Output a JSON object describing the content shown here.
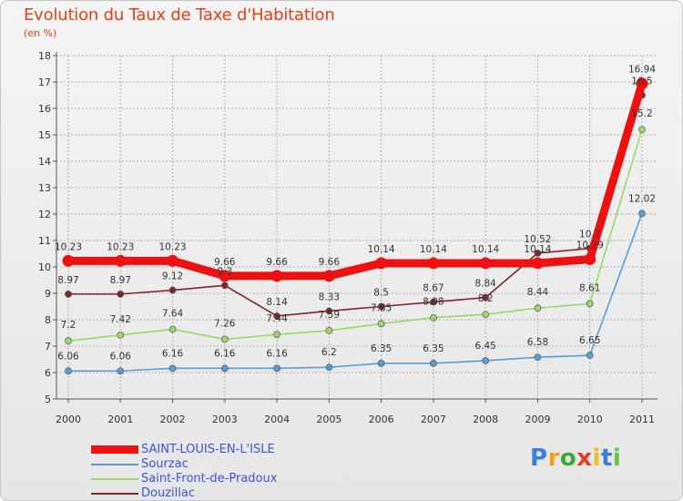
{
  "chart_data": {
    "type": "line",
    "title": "Evolution du Taux de Taxe d'Habitation",
    "subtitle": "(en %)",
    "x": [
      "2000",
      "2001",
      "2002",
      "2003",
      "2004",
      "2005",
      "2006",
      "2007",
      "2008",
      "2009",
      "2010",
      "2011"
    ],
    "yticks": [
      "5",
      "6",
      "7",
      "8",
      "9",
      "10",
      "11",
      "12",
      "13",
      "14",
      "15",
      "16",
      "17",
      "18"
    ],
    "ylim": [
      5,
      18
    ],
    "series": [
      {
        "name": "Sourzac",
        "color": "#5a9ed0",
        "values": [
          6.06,
          6.06,
          6.16,
          6.16,
          6.16,
          6.2,
          6.35,
          6.35,
          6.45,
          6.58,
          6.65,
          12.02
        ],
        "labels": [
          "6.06",
          "6.06",
          "6.16",
          "6.16",
          "6.16",
          "6.2",
          "6.35",
          "6.35",
          "6.45",
          "6.58",
          "6.65",
          "12.02"
        ]
      },
      {
        "name": "Saint-Front-de-Pradoux",
        "color": "#9ad86a",
        "values": [
          7.2,
          7.42,
          7.64,
          7.26,
          7.44,
          7.59,
          7.85,
          8.08,
          8.2,
          8.44,
          8.61,
          15.2
        ],
        "labels": [
          "7.2",
          "7.42",
          "7.64",
          "7.26",
          "7.44",
          "7.59",
          "7.85",
          "8.08",
          "8.2",
          "8.44",
          "8.61",
          "15.2"
        ]
      },
      {
        "name": "Douzillac",
        "color": "#7a2a2a",
        "values": [
          8.97,
          8.97,
          9.12,
          9.3,
          8.14,
          8.33,
          8.5,
          8.67,
          8.84,
          10.52,
          10.7,
          16.5
        ],
        "labels": [
          "8.97",
          "8.97",
          "9.12",
          "9.3",
          "8.14",
          "8.33",
          "8.5",
          "8.67",
          "8.84",
          "10.52",
          "10.7",
          "16.5"
        ]
      },
      {
        "name": "SAINT-LOUIS-EN-L'ISLE",
        "color": "#ee1111",
        "values": [
          10.23,
          10.23,
          10.23,
          9.66,
          9.66,
          9.66,
          10.14,
          10.14,
          10.14,
          10.14,
          10.29,
          16.94
        ],
        "labels": [
          "10.23",
          "10.23",
          "10.23",
          "9.66",
          "9.66",
          "9.66",
          "10.14",
          "10.14",
          "10.14",
          "10.14",
          "10.29",
          "16.94"
        ]
      }
    ],
    "legend": [
      {
        "name": "SAINT-LOUIS-EN-L'ISLE",
        "color": "#ee1111",
        "style": "thick"
      },
      {
        "name": "Sourzac",
        "color": "#5a9ed0",
        "style": "thin"
      },
      {
        "name": "Saint-Front-de-Pradoux",
        "color": "#9ad86a",
        "style": "thin"
      },
      {
        "name": "Douzillac",
        "color": "#7a2a2a",
        "style": "thin"
      }
    ]
  },
  "brand": {
    "letters": [
      "P",
      "r",
      "o",
      "x",
      "i",
      "t",
      "i"
    ],
    "colors": [
      "#3a7fd6",
      "#f0a020",
      "#3aa83a",
      "#e04020",
      "#f0c020",
      "#3a7fd6",
      "#6ac04a"
    ]
  }
}
